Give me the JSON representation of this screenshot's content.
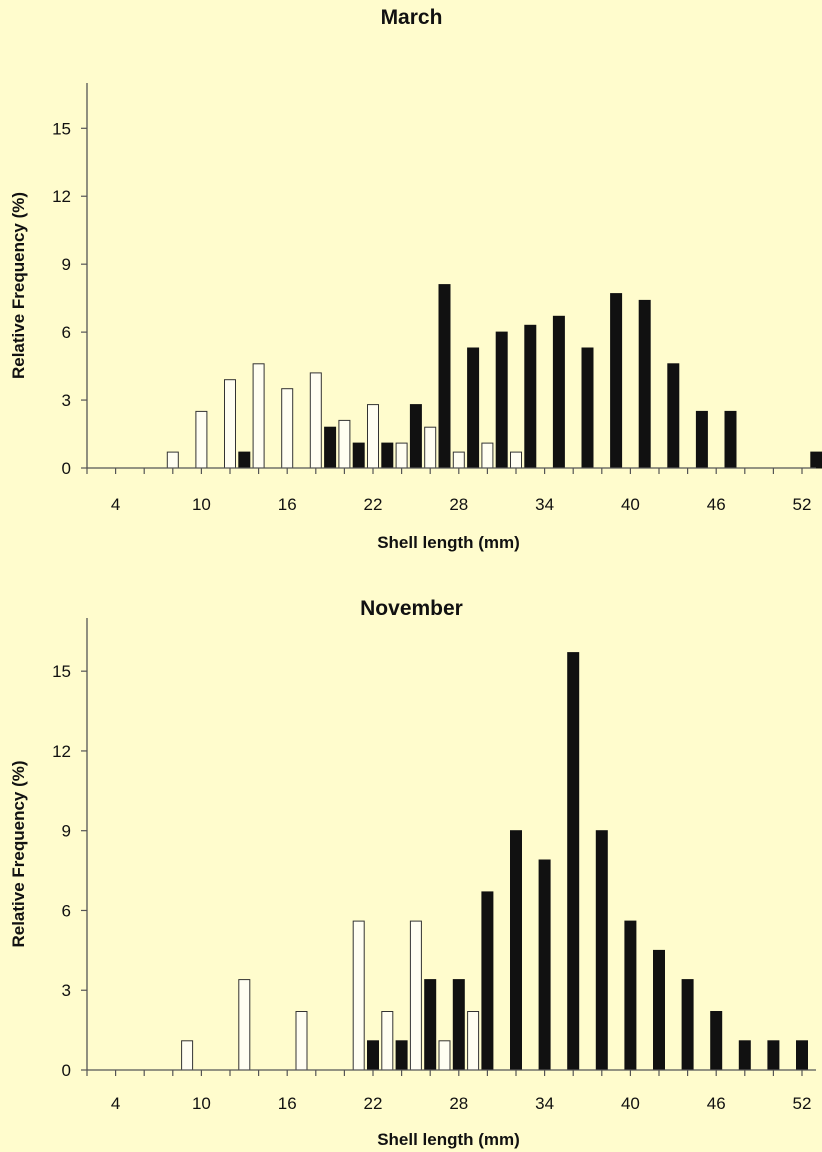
{
  "colors": {
    "background": "#fffccd",
    "bar_filled": "#111111",
    "bar_open": "#fffef2"
  },
  "chart_data": [
    {
      "type": "bar",
      "title": "March",
      "xlabel": "Shell length (mm)",
      "ylabel": "Relative Frequency (%)",
      "xlim": [
        2,
        53
      ],
      "ylim": [
        0,
        17
      ],
      "x_ticks": [
        4,
        10,
        16,
        22,
        28,
        34,
        40,
        46,
        52
      ],
      "y_ticks": [
        0,
        3,
        6,
        9,
        12,
        15
      ],
      "grid": false,
      "series": [
        {
          "style": "open",
          "x": [
            8,
            10,
            12,
            14,
            16,
            18,
            20,
            22,
            24,
            26,
            28,
            30,
            32
          ],
          "values": [
            0.7,
            2.5,
            3.9,
            4.6,
            3.5,
            4.2,
            2.1,
            2.8,
            1.1,
            1.8,
            0.7,
            1.1,
            0.7
          ]
        },
        {
          "style": "filled",
          "x": [
            13,
            19,
            21,
            23,
            25,
            27,
            29,
            31,
            33,
            35,
            37,
            39,
            41,
            43,
            45,
            47,
            53
          ],
          "values": [
            0.7,
            1.8,
            1.1,
            1.1,
            2.8,
            8.1,
            5.3,
            6.0,
            6.3,
            6.7,
            5.3,
            7.7,
            7.4,
            4.6,
            2.5,
            2.5,
            0.7
          ]
        }
      ]
    },
    {
      "type": "bar",
      "title": "November",
      "xlabel": "Shell length (mm)",
      "ylabel": "Relative Frequency (%)",
      "xlim": [
        2,
        53
      ],
      "ylim": [
        0,
        17
      ],
      "x_ticks": [
        4,
        10,
        16,
        22,
        28,
        34,
        40,
        46,
        52
      ],
      "y_ticks": [
        0,
        3,
        6,
        9,
        12,
        15
      ],
      "grid": false,
      "series": [
        {
          "style": "open",
          "x": [
            9,
            13,
            17,
            21,
            23,
            25,
            27,
            29
          ],
          "values": [
            1.1,
            3.4,
            2.2,
            5.6,
            2.2,
            5.6,
            1.1,
            2.2
          ]
        },
        {
          "style": "filled",
          "x": [
            22,
            24,
            26,
            28,
            30,
            32,
            34,
            36,
            38,
            40,
            42,
            44,
            46,
            48,
            50,
            52
          ],
          "values": [
            1.1,
            1.1,
            3.4,
            3.4,
            6.7,
            9.0,
            7.9,
            15.7,
            9.0,
            5.6,
            4.5,
            3.4,
            2.2,
            1.1,
            1.1,
            1.1
          ]
        }
      ]
    }
  ]
}
